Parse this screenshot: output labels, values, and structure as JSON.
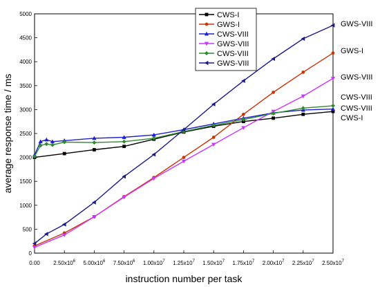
{
  "chart_data": {
    "type": "line",
    "xlabel": "instruction number per task",
    "ylabel": "average response time / ms",
    "xlim": [
      0,
      25000000
    ],
    "ylim": [
      0,
      5000
    ],
    "x_ticks": [
      {
        "value": 0,
        "mant": "0.00",
        "exp": ""
      },
      {
        "value": 2500000,
        "mant": "2.50x10",
        "exp": "6"
      },
      {
        "value": 5000000,
        "mant": "5.00x10",
        "exp": "6"
      },
      {
        "value": 7500000,
        "mant": "7.50x10",
        "exp": "6"
      },
      {
        "value": 10000000,
        "mant": "1.00x10",
        "exp": "7"
      },
      {
        "value": 12500000,
        "mant": "1.25x10",
        "exp": "7"
      },
      {
        "value": 15000000,
        "mant": "1.50x10",
        "exp": "7"
      },
      {
        "value": 17500000,
        "mant": "1.75x10",
        "exp": "7"
      },
      {
        "value": 20000000,
        "mant": "2.00x10",
        "exp": "7"
      },
      {
        "value": 22500000,
        "mant": "2.25x10",
        "exp": "7"
      },
      {
        "value": 25000000,
        "mant": "2.50x10",
        "exp": "7"
      }
    ],
    "y_ticks": [
      0,
      500,
      1000,
      1500,
      2000,
      2500,
      3000,
      3500,
      4000,
      4500,
      5000
    ],
    "legend_position": "top-right",
    "series": [
      {
        "name": "CWS-I",
        "color": "#000000",
        "marker": "square",
        "end_label": "CWS-I",
        "x": [
          0,
          2500000,
          5000000,
          7500000,
          10000000,
          12500000,
          15000000,
          17500000,
          20000000,
          22500000,
          25000000
        ],
        "y": [
          2000,
          2080,
          2160,
          2230,
          2380,
          2530,
          2650,
          2750,
          2820,
          2900,
          2960
        ]
      },
      {
        "name": "GWS-I",
        "color": "#cc3300",
        "marker": "circle",
        "end_label": "GWS-I",
        "x": [
          0,
          2500000,
          5000000,
          7500000,
          10000000,
          12500000,
          15000000,
          17500000,
          20000000,
          22500000,
          25000000
        ],
        "y": [
          150,
          420,
          760,
          1180,
          1580,
          2000,
          2420,
          2900,
          3360,
          3780,
          4180
        ]
      },
      {
        "name": "CWS-VIII",
        "color": "#1f1fcc",
        "marker": "triangle",
        "end_label": "CWS-VIII",
        "x": [
          0,
          500000,
          1000000,
          1500000,
          2500000,
          5000000,
          7500000,
          10000000,
          12500000,
          15000000,
          17500000,
          20000000,
          22500000,
          25000000
        ],
        "y": [
          2050,
          2330,
          2370,
          2330,
          2350,
          2400,
          2420,
          2470,
          2580,
          2700,
          2820,
          2930,
          2990,
          3010
        ]
      },
      {
        "name": "GWS-VIII",
        "color": "#cc33ff",
        "marker": "triangle-down",
        "end_label": "GWS-VIII",
        "x": [
          0,
          2500000,
          5000000,
          7500000,
          10000000,
          12500000,
          15000000,
          17500000,
          20000000,
          22500000,
          25000000
        ],
        "y": [
          120,
          380,
          760,
          1170,
          1560,
          1920,
          2270,
          2620,
          2960,
          3280,
          3650
        ]
      },
      {
        "name": "CWS-VIII",
        "color": "#2e8b2e",
        "marker": "diamond",
        "end_label": "CWS-VIII",
        "x": [
          0,
          500000,
          1000000,
          1500000,
          2500000,
          5000000,
          7500000,
          10000000,
          12500000,
          15000000,
          17500000,
          20000000,
          22500000,
          25000000
        ],
        "y": [
          2020,
          2250,
          2280,
          2260,
          2320,
          2310,
          2330,
          2400,
          2540,
          2670,
          2790,
          2920,
          3030,
          3080
        ]
      },
      {
        "name": "GWS-VIII",
        "color": "#1a1a8c",
        "marker": "triangle-left",
        "end_label": "GWS-VIII",
        "x": [
          0,
          1000000,
          2500000,
          5000000,
          7500000,
          10000000,
          12500000,
          15000000,
          17500000,
          20000000,
          22500000,
          25000000
        ],
        "y": [
          200,
          400,
          600,
          1060,
          1600,
          2060,
          2580,
          3110,
          3600,
          4060,
          4480,
          4760
        ]
      }
    ]
  }
}
